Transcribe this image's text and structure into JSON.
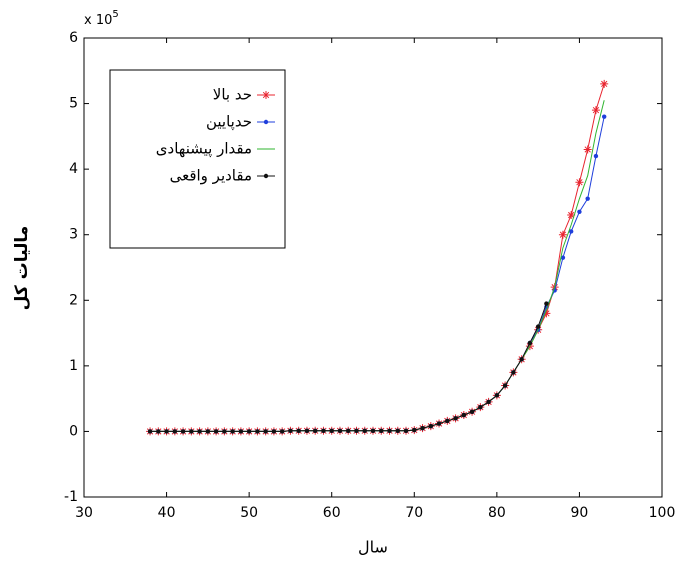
{
  "chart_data": {
    "type": "line",
    "x_label": "سال",
    "y_label": "مالیات کل",
    "multiplier": {
      "base": "x 10",
      "exponent": "5"
    },
    "xlim": [
      30,
      100
    ],
    "xticks": [
      30,
      40,
      50,
      60,
      70,
      80,
      90,
      100
    ],
    "ylim": [
      -1,
      6
    ],
    "yticks": [
      -1,
      0,
      1,
      2,
      3,
      4,
      5,
      6
    ],
    "grid": false,
    "x": [
      38,
      39,
      40,
      41,
      42,
      43,
      44,
      45,
      46,
      47,
      48,
      49,
      50,
      51,
      52,
      53,
      54,
      55,
      56,
      57,
      58,
      59,
      60,
      61,
      62,
      63,
      64,
      65,
      66,
      67,
      68,
      69,
      70,
      71,
      72,
      73,
      74,
      75,
      76,
      77,
      78,
      79,
      80,
      81,
      82,
      83,
      84,
      85,
      86,
      87,
      88,
      89,
      90,
      91,
      92,
      93
    ],
    "series": [
      {
        "name": "حد بالا",
        "color": "#e8242f",
        "marker": "star",
        "values": [
          0,
          0,
          0,
          0,
          0,
          0,
          0,
          0,
          0,
          0,
          0,
          0,
          0,
          0,
          0,
          0,
          0,
          0.01,
          0.01,
          0.01,
          0.01,
          0.01,
          0.01,
          0.01,
          0.01,
          0.01,
          0.01,
          0.01,
          0.01,
          0.01,
          0.01,
          0.01,
          0.02,
          0.05,
          0.08,
          0.12,
          0.16,
          0.2,
          0.25,
          0.3,
          0.37,
          0.45,
          0.55,
          0.7,
          0.9,
          1.1,
          1.3,
          1.55,
          1.8,
          2.2,
          3.0,
          3.3,
          3.8,
          4.3,
          4.9,
          5.3
        ]
      },
      {
        "name": "حدپایین",
        "color": "#1f3fdc",
        "marker": "dot",
        "values": [
          0,
          0,
          0,
          0,
          0,
          0,
          0,
          0,
          0,
          0,
          0,
          0,
          0,
          0,
          0,
          0,
          0,
          0.01,
          0.01,
          0.01,
          0.01,
          0.01,
          0.01,
          0.01,
          0.01,
          0.01,
          0.01,
          0.01,
          0.01,
          0.01,
          0.01,
          0.01,
          0.02,
          0.05,
          0.08,
          0.12,
          0.16,
          0.2,
          0.25,
          0.3,
          0.37,
          0.45,
          0.55,
          0.7,
          0.9,
          1.1,
          1.35,
          1.55,
          1.9,
          2.15,
          2.65,
          3.05,
          3.35,
          3.55,
          4.2,
          4.8
        ]
      },
      {
        "name": "مقدار پیشنهادی",
        "color": "#2fb52f",
        "marker": "none",
        "values": [
          0,
          0,
          0,
          0,
          0,
          0,
          0,
          0,
          0,
          0,
          0,
          0,
          0,
          0,
          0,
          0,
          0,
          0.01,
          0.01,
          0.01,
          0.01,
          0.01,
          0.01,
          0.01,
          0.01,
          0.01,
          0.01,
          0.01,
          0.01,
          0.01,
          0.01,
          0.01,
          0.02,
          0.05,
          0.08,
          0.12,
          0.16,
          0.2,
          0.25,
          0.3,
          0.37,
          0.45,
          0.55,
          0.7,
          0.9,
          1.1,
          1.3,
          1.55,
          1.85,
          2.2,
          2.8,
          3.15,
          3.55,
          3.9,
          4.55,
          5.05
        ]
      },
      {
        "name": "مقادیر واقعی",
        "color": "#111111",
        "marker": "dot",
        "values": [
          0,
          0,
          0,
          0,
          0,
          0,
          0,
          0,
          0,
          0,
          0,
          0,
          0,
          0,
          0,
          0,
          0,
          0.01,
          0.01,
          0.01,
          0.01,
          0.01,
          0.01,
          0.01,
          0.01,
          0.01,
          0.01,
          0.01,
          0.01,
          0.01,
          0.01,
          0.01,
          0.02,
          0.05,
          0.08,
          0.12,
          0.16,
          0.2,
          0.25,
          0.3,
          0.37,
          0.45,
          0.55,
          0.7,
          0.9,
          1.1,
          1.35,
          1.6,
          1.95,
          null,
          null,
          null,
          null,
          null,
          null,
          null
        ]
      }
    ]
  }
}
